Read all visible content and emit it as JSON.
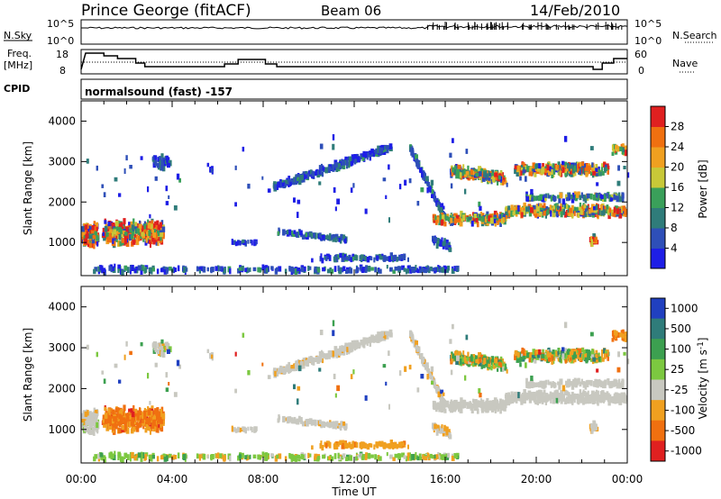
{
  "header": {
    "station": "Prince George (fitACF)",
    "beam": "Beam 06",
    "date": "14/Feb/2010"
  },
  "strip_panels": {
    "nsky": {
      "label": "N.Sky",
      "ticks": [
        "10^5",
        "10^0"
      ],
      "right_label": "N.Search",
      "right_ticks": [
        "10^5",
        "10^0"
      ]
    },
    "freq": {
      "label_line1": "Freq.",
      "label_line2": "[MHz]",
      "ticks": [
        "18",
        "8"
      ],
      "right_label": "Nave",
      "right_ticks": [
        "60",
        "0"
      ]
    },
    "cpid": {
      "label": "CPID",
      "value": "normalsound (fast) -157"
    }
  },
  "chart_data": [
    {
      "type": "heatmap",
      "name": "power-panel",
      "ylabel": "Slant Range [km]",
      "xlabel": "",
      "yticks": [
        "1000",
        "2000",
        "3000",
        "4000"
      ],
      "ylim": [
        180,
        4500
      ],
      "xlim_hours": [
        0,
        24
      ],
      "colorbar": {
        "label": "Power [dB]",
        "ticks": [
          "4",
          "8",
          "12",
          "16",
          "20",
          "24",
          "28"
        ],
        "colors": [
          "#1e1ee6",
          "#2e4fb8",
          "#2f7c7a",
          "#3aa05a",
          "#c8c838",
          "#f0a020",
          "#f07010",
          "#e02020"
        ]
      }
    },
    {
      "type": "heatmap",
      "name": "velocity-panel",
      "ylabel": "Slant Range [km]",
      "xlabel": "Time UT",
      "yticks": [
        "1000",
        "2000",
        "3000",
        "4000"
      ],
      "ylim": [
        180,
        4500
      ],
      "xticks": [
        "00:00",
        "04:00",
        "08:00",
        "12:00",
        "16:00",
        "20:00",
        "00:00"
      ],
      "xlim_hours": [
        0,
        24
      ],
      "colorbar": {
        "label": "Velocity [m s",
        "label_sup": "-1",
        "label_end": "]",
        "ticks": [
          "1000",
          "500",
          "100",
          "25",
          "-25",
          "-100",
          "-500",
          "-1000"
        ],
        "colors": [
          "#2040c0",
          "#2f7c7a",
          "#3ca050",
          "#7cc840",
          "#c8c8c0",
          "#f0a020",
          "#f07010",
          "#e02020"
        ]
      }
    }
  ]
}
